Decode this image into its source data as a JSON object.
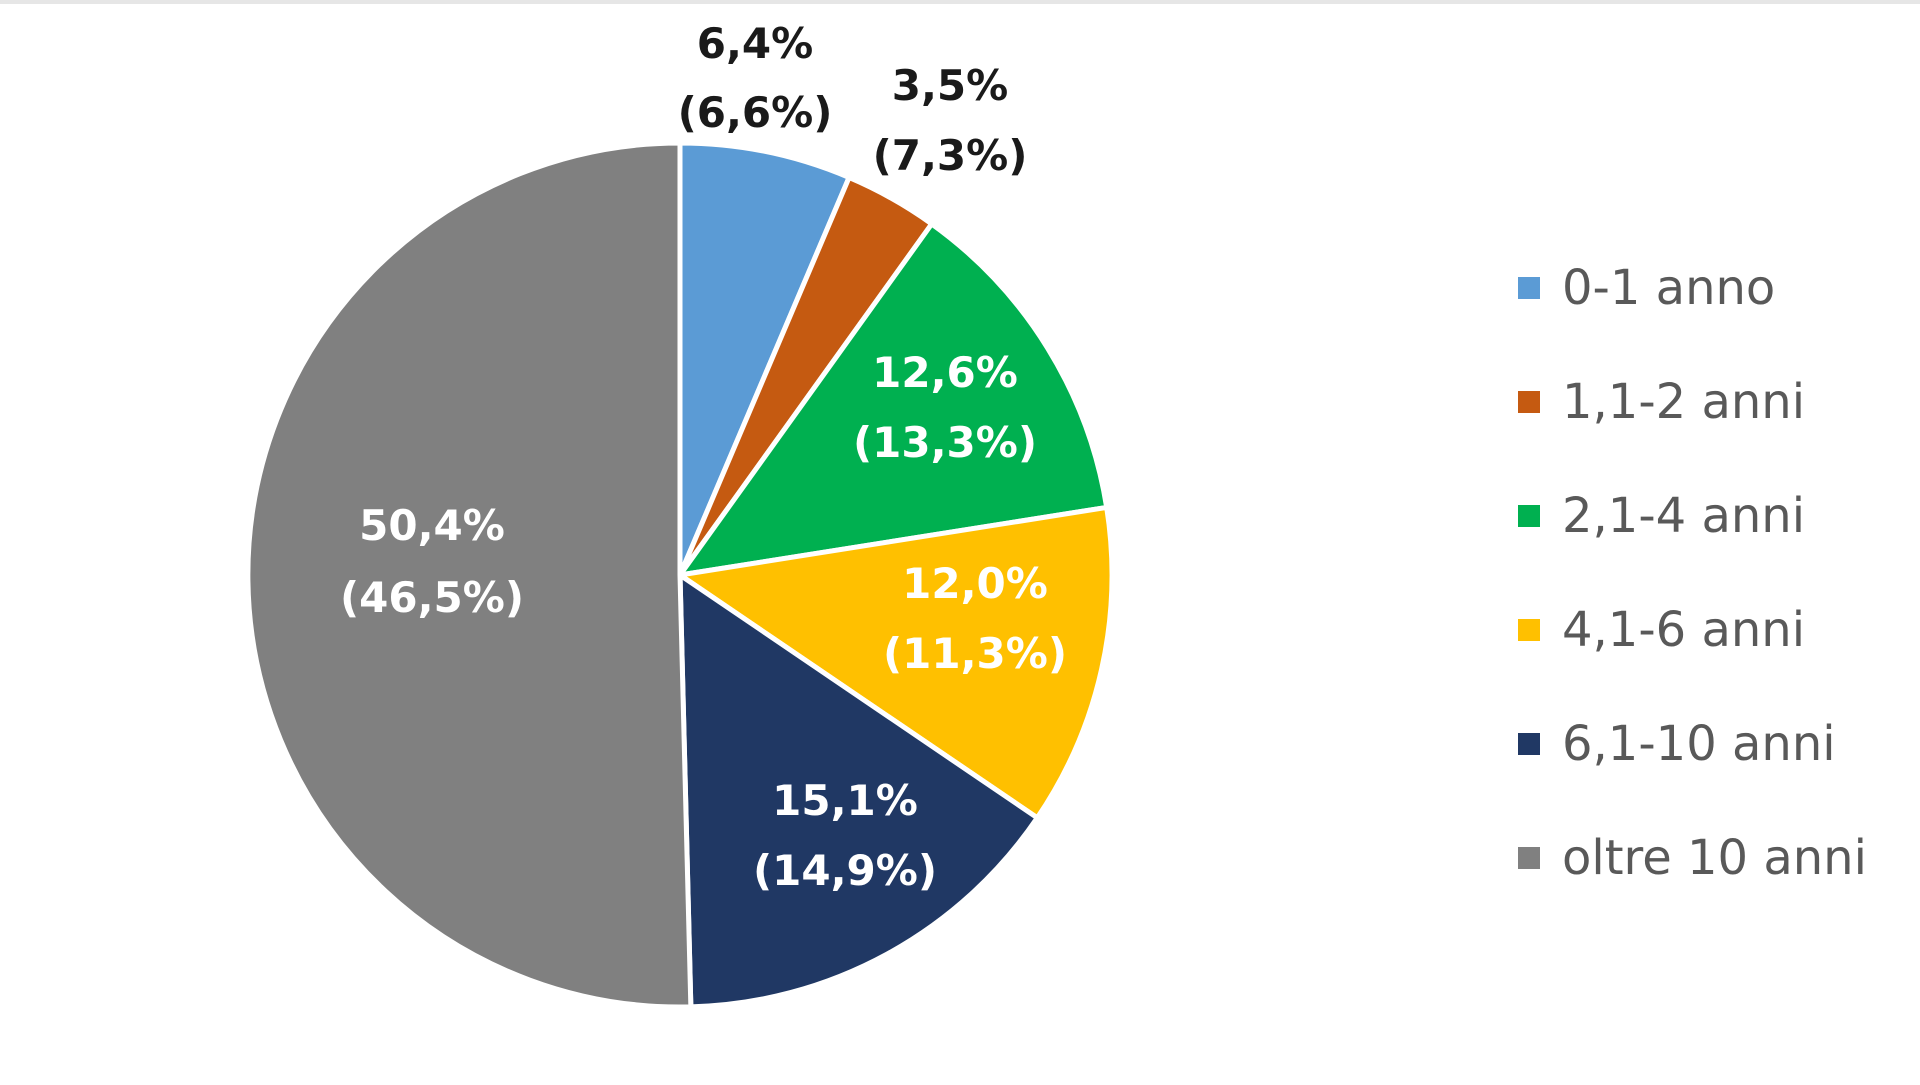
{
  "chart_data": {
    "type": "pie",
    "title": "",
    "slices": [
      {
        "label": "0-1 anno",
        "value": 6.4,
        "value_label": "6,4%",
        "secondary_label": "(6,6%)",
        "color": "#5b9bd5",
        "label_color": "#1a1a1a",
        "label_outside": true
      },
      {
        "label": "1,1-2 anni",
        "value": 3.5,
        "value_label": "3,5%",
        "secondary_label": "(7,3%)",
        "color": "#c55a11",
        "label_color": "#1a1a1a",
        "label_outside": true
      },
      {
        "label": "2,1-4 anni",
        "value": 12.6,
        "value_label": "12,6%",
        "secondary_label": "(13,3%)",
        "color": "#00b050",
        "label_color": "#ffffff",
        "label_outside": false
      },
      {
        "label": "4,1-6 anni",
        "value": 12.0,
        "value_label": "12,0%",
        "secondary_label": "(11,3%)",
        "color": "#ffc000",
        "label_color": "#ffffff",
        "label_outside": false
      },
      {
        "label": "6,1-10 anni",
        "value": 15.1,
        "value_label": "15,1%",
        "secondary_label": "(14,9%)",
        "color": "#203864",
        "label_color": "#ffffff",
        "label_outside": false
      },
      {
        "label": "oltre 10 anni",
        "value": 50.4,
        "value_label": "50,4%",
        "secondary_label": "(46,5%)",
        "color": "#808080",
        "label_color": "#ffffff",
        "label_outside": false
      }
    ],
    "start_angle": "12 o'clock",
    "direction": "clockwise",
    "legend_placement": "right"
  }
}
